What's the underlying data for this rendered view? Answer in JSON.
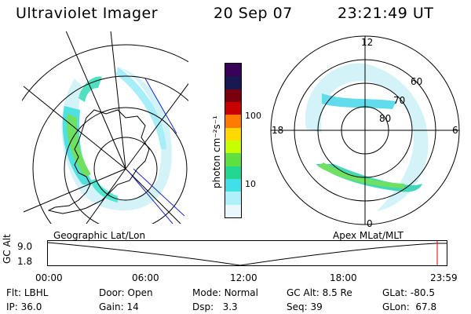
{
  "header": {
    "instrument": "Ultraviolet Imager",
    "date": "20 Sep 07",
    "time": "23:21:49 UT"
  },
  "geo_panel": {
    "label": "Geographic Lat/Lon"
  },
  "apex_panel": {
    "label": "Apex MLat/MLT",
    "mlt_labels": [
      "12",
      "18",
      "6",
      "0"
    ],
    "lat_labels": [
      "60",
      "70",
      "80"
    ]
  },
  "colorbar": {
    "unit_label": "photon cm⁻²s⁻¹",
    "ticks": [
      "100",
      "10"
    ],
    "colors": [
      "#3a0058",
      "#1a1850",
      "#7a0010",
      "#c80000",
      "#ff7a00",
      "#ffd800",
      "#c8ff00",
      "#60e040",
      "#20d890",
      "#40e0e8",
      "#b0f0f8",
      "#e8f8fc"
    ]
  },
  "altitude_chart": {
    "ylabel": "GC Alt",
    "y_ticks": [
      "9.0",
      "1.8"
    ],
    "x_ticks": [
      "00:00",
      "06:00",
      "12:00",
      "18:00",
      "23:59"
    ]
  },
  "info": {
    "row1": [
      {
        "label": "Flt:",
        "value": "LBHL"
      },
      {
        "label": "Door:",
        "value": "Open"
      },
      {
        "label": "Mode:",
        "value": "Normal"
      },
      {
        "label": "GC Alt:",
        "value": "8.5 Re"
      },
      {
        "label": "GLat:",
        "value": "-80.5"
      }
    ],
    "row2": [
      {
        "label": "IP:",
        "value": "36.0"
      },
      {
        "label": "Gain:",
        "value": "14"
      },
      {
        "label": "Dsp:",
        "value": "3.3"
      },
      {
        "label": "Seq:",
        "value": "39"
      },
      {
        "label": "GLon:",
        "value": "67.8"
      }
    ]
  }
}
